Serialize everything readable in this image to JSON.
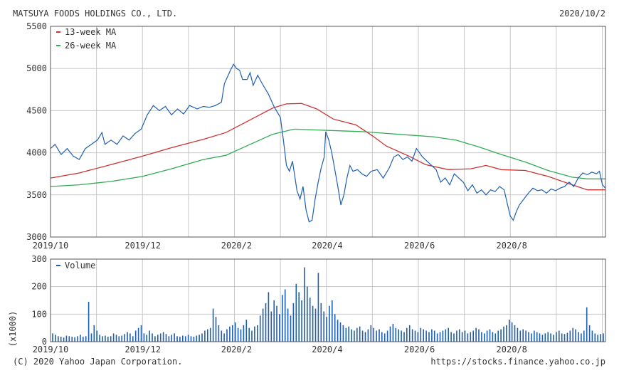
{
  "header": {
    "company": "MATSUYA FOODS HOLDINGS CO., LTD.",
    "date": "2020/10/2"
  },
  "footer": {
    "copyright": "(C) 2020 Yahoo Japan Corporation.",
    "url": "https://stocks.finance.yahoo.co.jp"
  },
  "colors": {
    "price": "#1f5fb0",
    "ma13": "#cc3333",
    "ma26": "#33aa55",
    "volume": "#1f5fb0",
    "grid": "#c8c8c8"
  },
  "chart_data": [
    {
      "type": "line",
      "xlim": [
        "2019-10-01",
        "2020-10-02"
      ],
      "ylim": [
        3000,
        5500
      ],
      "yticks": [
        3000,
        3500,
        4000,
        4500,
        5000,
        5500
      ],
      "xticks": [
        {
          "date": "2019-10-01",
          "label": "2019/10"
        },
        {
          "date": "2019-12-01",
          "label": "2019/12"
        },
        {
          "date": "2020-02-01",
          "label": "2020/2"
        },
        {
          "date": "2020-04-01",
          "label": "2020/4"
        },
        {
          "date": "2020-06-01",
          "label": "2020/6"
        },
        {
          "date": "2020-08-01",
          "label": "2020/8"
        }
      ],
      "grid": true,
      "legend_position": "top-left",
      "series": [
        {
          "name": "13-week MA",
          "color": "#cc3333",
          "points": [
            [
              "2019-10-01",
              3700
            ],
            [
              "2019-10-20",
              3760
            ],
            [
              "2019-11-10",
              3860
            ],
            [
              "2019-12-01",
              3960
            ],
            [
              "2019-12-20",
              4060
            ],
            [
              "2020-01-10",
              4160
            ],
            [
              "2020-01-25",
              4240
            ],
            [
              "2020-02-10",
              4390
            ],
            [
              "2020-02-25",
              4530
            ],
            [
              "2020-03-05",
              4580
            ],
            [
              "2020-03-15",
              4585
            ],
            [
              "2020-03-25",
              4520
            ],
            [
              "2020-04-05",
              4400
            ],
            [
              "2020-04-20",
              4330
            ],
            [
              "2020-05-01",
              4200
            ],
            [
              "2020-05-10",
              4080
            ],
            [
              "2020-05-25",
              3960
            ],
            [
              "2020-06-05",
              3860
            ],
            [
              "2020-06-20",
              3800
            ],
            [
              "2020-07-05",
              3810
            ],
            [
              "2020-07-15",
              3850
            ],
            [
              "2020-07-25",
              3800
            ],
            [
              "2020-08-10",
              3790
            ],
            [
              "2020-08-25",
              3720
            ],
            [
              "2020-09-10",
              3620
            ],
            [
              "2020-09-20",
              3560
            ],
            [
              "2020-10-02",
              3560
            ]
          ]
        },
        {
          "name": "26-week MA",
          "color": "#33aa55",
          "points": [
            [
              "2019-10-01",
              3600
            ],
            [
              "2019-10-20",
              3620
            ],
            [
              "2019-11-10",
              3660
            ],
            [
              "2019-12-01",
              3720
            ],
            [
              "2019-12-20",
              3810
            ],
            [
              "2020-01-10",
              3920
            ],
            [
              "2020-01-25",
              3970
            ],
            [
              "2020-02-10",
              4100
            ],
            [
              "2020-02-25",
              4220
            ],
            [
              "2020-03-10",
              4280
            ],
            [
              "2020-03-25",
              4270
            ],
            [
              "2020-04-10",
              4260
            ],
            [
              "2020-04-25",
              4250
            ],
            [
              "2020-05-10",
              4230
            ],
            [
              "2020-05-25",
              4210
            ],
            [
              "2020-06-10",
              4190
            ],
            [
              "2020-06-25",
              4150
            ],
            [
              "2020-07-10",
              4070
            ],
            [
              "2020-07-25",
              3980
            ],
            [
              "2020-08-10",
              3890
            ],
            [
              "2020-08-25",
              3790
            ],
            [
              "2020-09-10",
              3710
            ],
            [
              "2020-09-20",
              3690
            ],
            [
              "2020-10-02",
              3690
            ]
          ]
        },
        {
          "name": "",
          "color": "#1f5fb0",
          "points": [
            [
              "2019-10-01",
              4050
            ],
            [
              "2019-10-04",
              4100
            ],
            [
              "2019-10-08",
              3980
            ],
            [
              "2019-10-12",
              4050
            ],
            [
              "2019-10-16",
              3960
            ],
            [
              "2019-10-20",
              3920
            ],
            [
              "2019-10-24",
              4050
            ],
            [
              "2019-10-28",
              4100
            ],
            [
              "2019-11-01",
              4150
            ],
            [
              "2019-11-04",
              4240
            ],
            [
              "2019-11-06",
              4100
            ],
            [
              "2019-11-10",
              4150
            ],
            [
              "2019-11-14",
              4100
            ],
            [
              "2019-11-18",
              4200
            ],
            [
              "2019-11-22",
              4150
            ],
            [
              "2019-11-26",
              4230
            ],
            [
              "2019-11-30",
              4280
            ],
            [
              "2019-12-04",
              4450
            ],
            [
              "2019-12-08",
              4560
            ],
            [
              "2019-12-12",
              4500
            ],
            [
              "2019-12-16",
              4550
            ],
            [
              "2019-12-20",
              4450
            ],
            [
              "2019-12-24",
              4520
            ],
            [
              "2019-12-28",
              4460
            ],
            [
              "2020-01-01",
              4560
            ],
            [
              "2020-01-06",
              4520
            ],
            [
              "2020-01-10",
              4550
            ],
            [
              "2020-01-14",
              4540
            ],
            [
              "2020-01-18",
              4560
            ],
            [
              "2020-01-22",
              4600
            ],
            [
              "2020-01-24",
              4820
            ],
            [
              "2020-01-26",
              4900
            ],
            [
              "2020-01-28",
              4980
            ],
            [
              "2020-01-30",
              5050
            ],
            [
              "2020-02-01",
              5000
            ],
            [
              "2020-02-03",
              4980
            ],
            [
              "2020-02-05",
              4870
            ],
            [
              "2020-02-08",
              4870
            ],
            [
              "2020-02-10",
              4950
            ],
            [
              "2020-02-12",
              4800
            ],
            [
              "2020-02-15",
              4920
            ],
            [
              "2020-02-18",
              4820
            ],
            [
              "2020-02-22",
              4700
            ],
            [
              "2020-02-26",
              4540
            ],
            [
              "2020-03-01",
              4420
            ],
            [
              "2020-03-03",
              4150
            ],
            [
              "2020-03-05",
              3850
            ],
            [
              "2020-03-07",
              3780
            ],
            [
              "2020-03-09",
              3900
            ],
            [
              "2020-03-12",
              3550
            ],
            [
              "2020-03-14",
              3450
            ],
            [
              "2020-03-16",
              3600
            ],
            [
              "2020-03-18",
              3320
            ],
            [
              "2020-03-20",
              3180
            ],
            [
              "2020-03-22",
              3200
            ],
            [
              "2020-03-24",
              3450
            ],
            [
              "2020-03-26",
              3650
            ],
            [
              "2020-03-28",
              3820
            ],
            [
              "2020-03-30",
              3950
            ],
            [
              "2020-03-31",
              4250
            ],
            [
              "2020-04-02",
              4150
            ],
            [
              "2020-04-04",
              4000
            ],
            [
              "2020-04-06",
              3800
            ],
            [
              "2020-04-08",
              3600
            ],
            [
              "2020-04-10",
              3380
            ],
            [
              "2020-04-12",
              3500
            ],
            [
              "2020-04-14",
              3700
            ],
            [
              "2020-04-16",
              3850
            ],
            [
              "2020-04-18",
              3780
            ],
            [
              "2020-04-21",
              3800
            ],
            [
              "2020-04-24",
              3750
            ],
            [
              "2020-04-27",
              3720
            ],
            [
              "2020-04-30",
              3780
            ],
            [
              "2020-05-04",
              3800
            ],
            [
              "2020-05-08",
              3700
            ],
            [
              "2020-05-12",
              3820
            ],
            [
              "2020-05-15",
              3950
            ],
            [
              "2020-05-18",
              3980
            ],
            [
              "2020-05-21",
              3920
            ],
            [
              "2020-05-24",
              3950
            ],
            [
              "2020-05-27",
              3900
            ],
            [
              "2020-05-30",
              4050
            ],
            [
              "2020-06-03",
              3950
            ],
            [
              "2020-06-06",
              3900
            ],
            [
              "2020-06-09",
              3850
            ],
            [
              "2020-06-12",
              3800
            ],
            [
              "2020-06-15",
              3650
            ],
            [
              "2020-06-18",
              3700
            ],
            [
              "2020-06-21",
              3620
            ],
            [
              "2020-06-24",
              3750
            ],
            [
              "2020-06-27",
              3700
            ],
            [
              "2020-06-30",
              3650
            ],
            [
              "2020-07-03",
              3550
            ],
            [
              "2020-07-06",
              3620
            ],
            [
              "2020-07-09",
              3520
            ],
            [
              "2020-07-12",
              3560
            ],
            [
              "2020-07-15",
              3500
            ],
            [
              "2020-07-18",
              3560
            ],
            [
              "2020-07-21",
              3540
            ],
            [
              "2020-07-24",
              3600
            ],
            [
              "2020-07-27",
              3560
            ],
            [
              "2020-07-29",
              3400
            ],
            [
              "2020-07-31",
              3250
            ],
            [
              "2020-08-02",
              3200
            ],
            [
              "2020-08-04",
              3300
            ],
            [
              "2020-08-06",
              3380
            ],
            [
              "2020-08-09",
              3450
            ],
            [
              "2020-08-12",
              3520
            ],
            [
              "2020-08-15",
              3580
            ],
            [
              "2020-08-18",
              3550
            ],
            [
              "2020-08-21",
              3560
            ],
            [
              "2020-08-24",
              3520
            ],
            [
              "2020-08-27",
              3570
            ],
            [
              "2020-08-30",
              3550
            ],
            [
              "2020-09-02",
              3580
            ],
            [
              "2020-09-05",
              3600
            ],
            [
              "2020-09-08",
              3650
            ],
            [
              "2020-09-11",
              3600
            ],
            [
              "2020-09-14",
              3700
            ],
            [
              "2020-09-17",
              3760
            ],
            [
              "2020-09-20",
              3740
            ],
            [
              "2020-09-23",
              3770
            ],
            [
              "2020-09-26",
              3750
            ],
            [
              "2020-09-28",
              3780
            ],
            [
              "2020-09-30",
              3620
            ],
            [
              "2020-10-02",
              3580
            ]
          ]
        }
      ]
    },
    {
      "type": "bar",
      "xlim": [
        "2019-10-01",
        "2020-10-02"
      ],
      "ylim": [
        0,
        300
      ],
      "yticks": [
        0,
        100,
        200,
        300
      ],
      "ylabel": "(x1000)",
      "xticks": [
        {
          "date": "2019-10-01",
          "label": "2019/10"
        },
        {
          "date": "2019-12-01",
          "label": "2019/12"
        },
        {
          "date": "2020-02-01",
          "label": "2020/2"
        },
        {
          "date": "2020-04-01",
          "label": "2020/4"
        },
        {
          "date": "2020-06-01",
          "label": "2020/6"
        },
        {
          "date": "2020-08-01",
          "label": "2020/8"
        }
      ],
      "grid": true,
      "legend_position": "top-left",
      "series": [
        {
          "name": "Volume",
          "color": "#1f5fb0",
          "values": [
            30,
            25,
            20,
            18,
            15,
            22,
            20,
            18,
            16,
            20,
            25,
            18,
            20,
            145,
            30,
            60,
            40,
            25,
            20,
            22,
            18,
            20,
            30,
            25,
            20,
            22,
            28,
            35,
            30,
            20,
            40,
            50,
            60,
            30,
            25,
            40,
            30,
            20,
            25,
            30,
            35,
            28,
            20,
            25,
            30,
            20,
            18,
            22,
            20,
            25,
            20,
            18,
            22,
            25,
            30,
            40,
            45,
            50,
            120,
            90,
            60,
            40,
            30,
            45,
            55,
            60,
            70,
            50,
            45,
            60,
            80,
            50,
            40,
            55,
            60,
            95,
            120,
            140,
            180,
            110,
            150,
            130,
            100,
            170,
            190,
            120,
            95,
            140,
            210,
            180,
            150,
            270,
            200,
            160,
            130,
            120,
            250,
            140,
            110,
            90,
            130,
            150,
            100,
            80,
            70,
            60,
            50,
            55,
            45,
            40,
            50,
            55,
            40,
            35,
            45,
            60,
            50,
            40,
            45,
            35,
            30,
            40,
            55,
            65,
            50,
            45,
            40,
            35,
            50,
            60,
            45,
            40,
            35,
            50,
            45,
            40,
            35,
            45,
            40,
            30,
            35,
            40,
            45,
            50,
            35,
            30,
            40,
            45,
            35,
            40,
            30,
            35,
            40,
            50,
            45,
            35,
            30,
            40,
            45,
            35,
            30,
            40,
            45,
            55,
            60,
            80,
            70,
            60,
            50,
            40,
            45,
            40,
            35,
            30,
            40,
            35,
            30,
            25,
            30,
            35,
            30,
            25,
            35,
            40,
            30,
            28,
            32,
            40,
            50,
            45,
            35,
            30,
            40,
            125,
            60,
            40,
            30,
            25,
            28,
            30
          ]
        }
      ]
    }
  ]
}
